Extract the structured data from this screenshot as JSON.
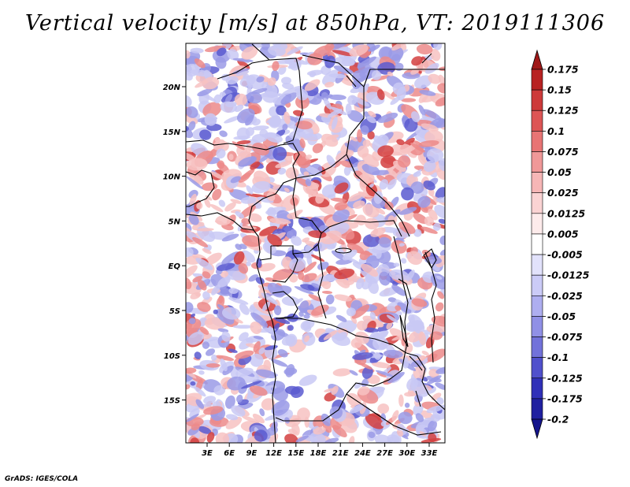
{
  "title": "Vertical velocity [m/s] at 850hPa, VT: 2019111306",
  "footer": "GrADS: IGES/COLA",
  "map": {
    "lon_ticks": [
      "3E",
      "6E",
      "9E",
      "12E",
      "15E",
      "18E",
      "21E",
      "24E",
      "27E",
      "30E",
      "33E"
    ],
    "lat_ticks": [
      "20N",
      "15N",
      "10N",
      "5N",
      "EQ",
      "5S",
      "10S",
      "15S"
    ]
  },
  "colorbar": {
    "levels": [
      "0.175",
      "0.15",
      "0.125",
      "0.1",
      "0.075",
      "0.05",
      "0.025",
      "0.0125",
      "0.005",
      "-0.005",
      "-0.0125",
      "-0.025",
      "-0.05",
      "-0.075",
      "-0.1",
      "-0.125",
      "-0.175",
      "-0.2"
    ],
    "colors": [
      "#a01818",
      "#b82222",
      "#cd3a3a",
      "#dd5555",
      "#e87474",
      "#f09898",
      "#f6b6b6",
      "#fad3d3",
      "#fdebeb",
      "#ffffff",
      "#e2e2fb",
      "#cbcbf7",
      "#aeaef0",
      "#9090e6",
      "#7272da",
      "#5050cc",
      "#3030b8",
      "#2020a0",
      "#14148c"
    ]
  },
  "field_colors": {
    "background": "#ffffff",
    "light_blue": "#c9c9f4",
    "mid_blue": "#9a9ae6",
    "dark_blue": "#5a5ad0",
    "light_red": "#f7c2c2",
    "mid_red": "#ec8a8a",
    "dark_red": "#d44040"
  }
}
